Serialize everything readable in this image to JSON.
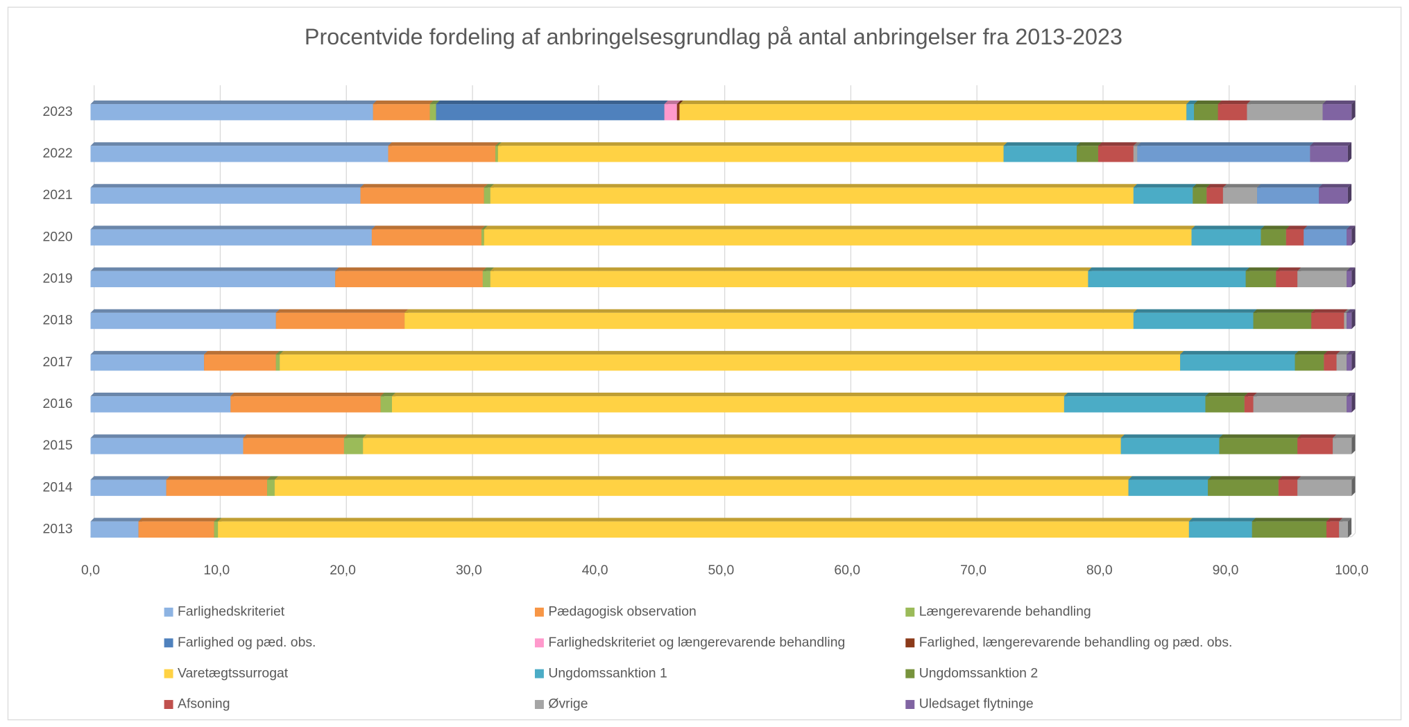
{
  "chart_data": {
    "type": "stacked-bar-horizontal",
    "title": "Procentvide fordeling af anbringelsesgrundlag på antal anbringelser fra 2013-2023",
    "categories": [
      "2023",
      "2022",
      "2021",
      "2020",
      "2019",
      "2018",
      "2017",
      "2016",
      "2015",
      "2014",
      "2013"
    ],
    "series": [
      {
        "name": "Farlighedskriteriet",
        "color": "#8db3e2",
        "values": [
          22.4,
          23.6,
          21.4,
          22.3,
          19.4,
          14.7,
          9.0,
          11.1,
          12.1,
          6.0,
          3.8
        ]
      },
      {
        "name": "Pædagogisk observation",
        "color": "#f79646",
        "values": [
          4.5,
          8.5,
          9.8,
          8.7,
          11.7,
          10.2,
          5.7,
          11.9,
          8.0,
          8.0,
          6.0
        ]
      },
      {
        "name": "Længerevarende behandling",
        "color": "#9bbb59",
        "values": [
          0.5,
          0.2,
          0.5,
          0.2,
          0.6,
          0,
          0.3,
          0.9,
          1.5,
          0.6,
          0.3
        ]
      },
      {
        "name": "Farlighed og pæd. obs.",
        "color": "#4f81bd",
        "values": [
          18.1,
          0,
          0,
          0,
          0,
          0,
          0,
          0,
          0,
          0,
          0
        ]
      },
      {
        "name": "Farlighedskriteriet og længerevarende behandling",
        "color": "#ff99cc",
        "values": [
          1.0,
          0,
          0,
          0,
          0,
          0,
          0,
          0,
          0,
          0,
          0
        ]
      },
      {
        "name": "Farlighed, længerevarende behandling og pæd. obs.",
        "color": "#8b3a1a",
        "values": [
          0.2,
          0,
          0,
          0,
          0,
          0,
          0,
          0,
          0,
          0,
          0
        ]
      },
      {
        "name": "Varetægtssurrogat",
        "color": "#ffd244",
        "values": [
          40.2,
          40.1,
          51.0,
          56.1,
          47.4,
          57.8,
          71.4,
          53.3,
          60.1,
          67.7,
          77.0
        ]
      },
      {
        "name": "Ungdomssanktion 1",
        "color": "#4bacc6",
        "values": [
          0.6,
          5.8,
          4.7,
          5.5,
          12.5,
          9.5,
          9.1,
          11.2,
          7.8,
          6.3,
          5.0
        ]
      },
      {
        "name": "Ungdomssanktion 2",
        "color": "#77933c",
        "values": [
          1.9,
          1.7,
          1.1,
          2.0,
          2.4,
          4.6,
          2.3,
          3.1,
          6.2,
          5.6,
          5.9
        ]
      },
      {
        "name": "Afsoning",
        "color": "#c0504d",
        "values": [
          2.3,
          2.8,
          1.3,
          1.4,
          1.7,
          2.6,
          1.0,
          0.7,
          2.8,
          1.5,
          1.0
        ]
      },
      {
        "name": "Øvrige",
        "color": "#a5a5a5",
        "values": [
          6.0,
          0.3,
          2.7,
          0,
          3.9,
          0.2,
          0.8,
          7.4,
          1.5,
          4.3,
          0.7
        ]
      },
      {
        "name": null,
        "color": "#6f9bd0",
        "values": [
          0,
          13.7,
          4.9,
          3.4,
          0,
          0,
          0,
          0,
          0,
          0,
          0
        ]
      },
      {
        "name": "Uledsaget flytninge",
        "color": "#8064a2",
        "values": [
          2.3,
          3.0,
          2.3,
          0.4,
          0.4,
          0.4,
          0.4,
          0.4,
          0,
          0,
          0
        ]
      }
    ],
    "xlim": [
      0,
      100
    ],
    "xticks": [
      {
        "value": 0,
        "label": "0,0"
      },
      {
        "value": 10,
        "label": "10,0"
      },
      {
        "value": 20,
        "label": "20,0"
      },
      {
        "value": 30,
        "label": "30,0"
      },
      {
        "value": 40,
        "label": "40,0"
      },
      {
        "value": 50,
        "label": "50,0"
      },
      {
        "value": 60,
        "label": "60,0"
      },
      {
        "value": 70,
        "label": "70,0"
      },
      {
        "value": 80,
        "label": "80,0"
      },
      {
        "value": 90,
        "label": "90,0"
      },
      {
        "value": 100,
        "label": "100,0"
      }
    ],
    "grid": true,
    "legend": "bottom"
  }
}
